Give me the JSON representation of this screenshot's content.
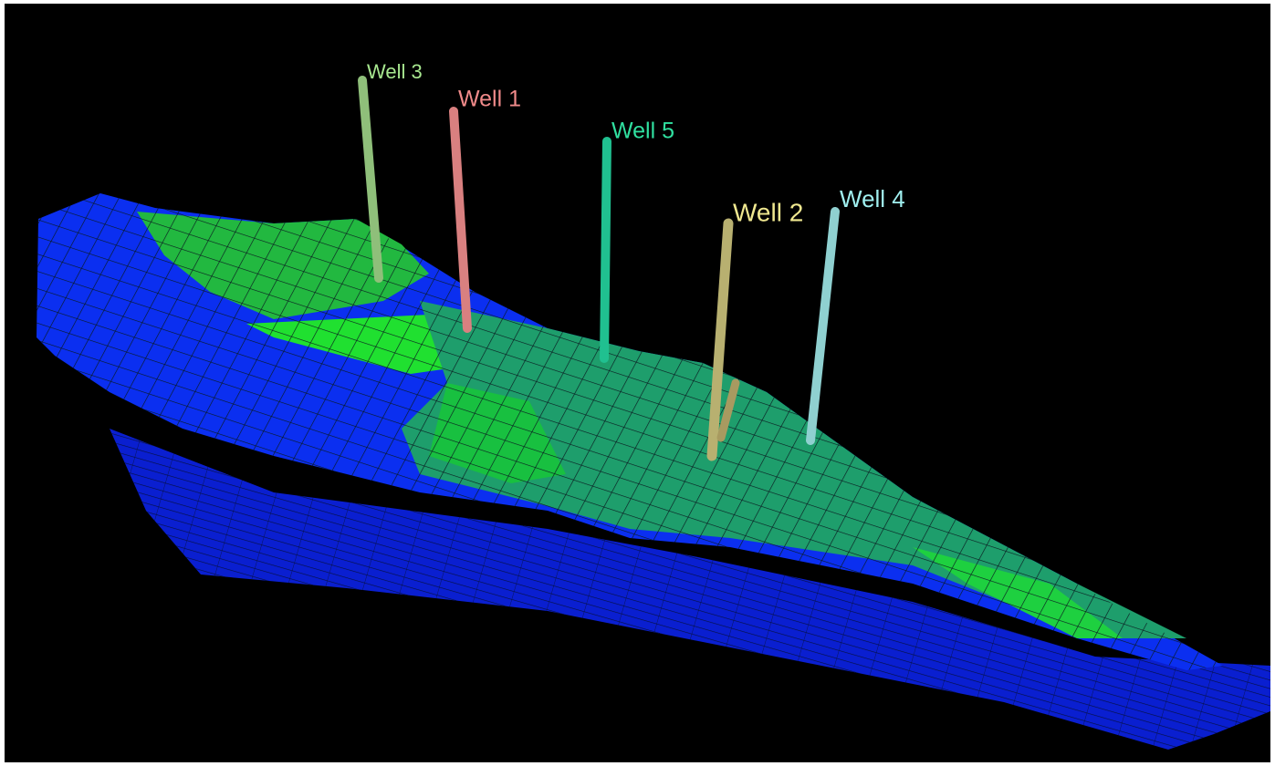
{
  "wells": [
    {
      "label": "Well 3"
    },
    {
      "label": "Well 1"
    },
    {
      "label": "Well 5"
    },
    {
      "label": "Well 2"
    },
    {
      "label": "Well 4"
    }
  ]
}
